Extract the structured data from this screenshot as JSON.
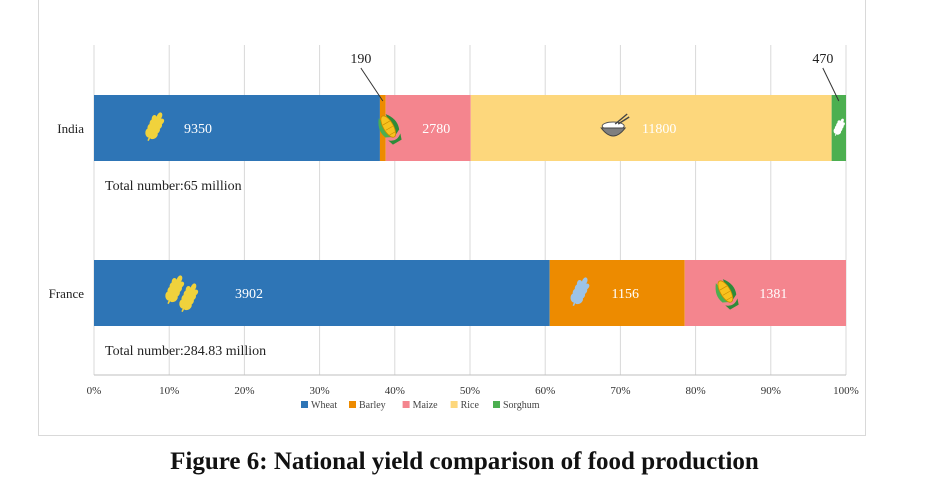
{
  "caption": "Figure 6: National yield comparison of food production",
  "colors": {
    "Wheat": "#2e75b6",
    "Barley": "#ed8b00",
    "Maize": "#f4858e",
    "Rice": "#fdd77c",
    "Sorghum": "#4caf50"
  },
  "chart_data": {
    "type": "bar",
    "orientation": "horizontal",
    "stacked": "percent",
    "categories": [
      "India",
      "France"
    ],
    "series": [
      {
        "name": "Wheat",
        "values": [
          9350,
          3902
        ]
      },
      {
        "name": "Barley",
        "values": [
          190,
          1156
        ]
      },
      {
        "name": "Maize",
        "values": [
          2780,
          1381
        ]
      },
      {
        "name": "Rice",
        "values": [
          11800,
          0
        ]
      },
      {
        "name": "Sorghum",
        "values": [
          470,
          0
        ]
      }
    ],
    "data_labels": [
      [
        "9350",
        "190",
        "2780",
        "11800",
        "470"
      ],
      [
        "3902",
        "1156",
        "1381",
        "",
        ""
      ]
    ],
    "totals": [
      "Total number:65 million",
      "Total number:284.83 million"
    ],
    "xticks": [
      "0%",
      "10%",
      "20%",
      "30%",
      "40%",
      "50%",
      "60%",
      "70%",
      "80%",
      "90%",
      "100%"
    ],
    "xlim": [
      0,
      100
    ],
    "grid": true,
    "legend": "bottom",
    "icons": [
      [
        "wheat-icon",
        "",
        "corn-icon",
        "rice-bowl-icon",
        "sorghum-icon"
      ],
      [
        "wheat-icon",
        "barley-icon",
        "corn-icon",
        "",
        ""
      ]
    ]
  }
}
